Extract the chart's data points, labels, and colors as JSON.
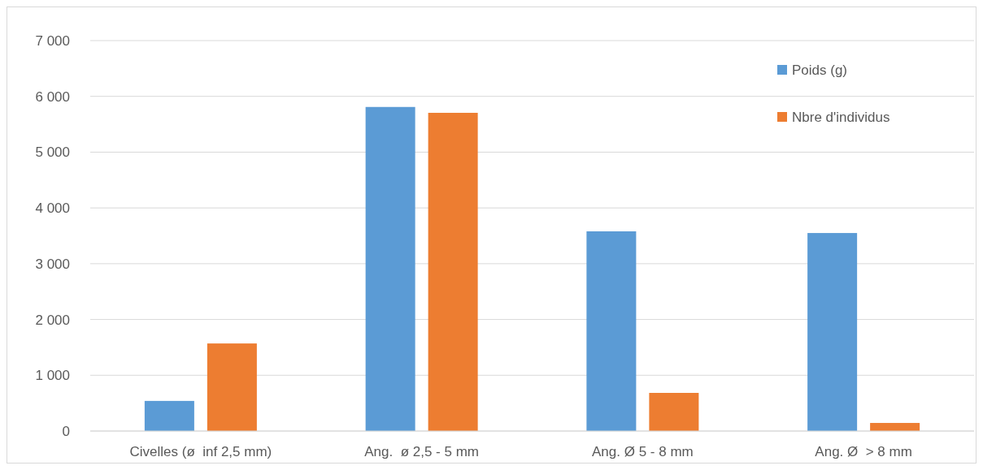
{
  "chart_data": {
    "type": "bar",
    "categories": [
      "Civelles (ø  inf 2,5 mm)",
      "Ang.  ø 2,5 - 5 mm",
      "Ang. Ø 5 - 8 mm",
      "Ang. Ø  > 8 mm"
    ],
    "series": [
      {
        "name": "Poids (g)",
        "color": "#5b9bd5",
        "values": [
          540,
          5810,
          3580,
          3550
        ]
      },
      {
        "name": "Nbre d'individus",
        "color": "#ed7d31",
        "values": [
          1570,
          5705,
          684,
          145
        ]
      }
    ],
    "ylim": [
      0,
      7000
    ],
    "yticks": [
      {
        "value": 0,
        "label": "0"
      },
      {
        "value": 1000,
        "label": "1 000"
      },
      {
        "value": 2000,
        "label": "2 000"
      },
      {
        "value": 3000,
        "label": "3 000"
      },
      {
        "value": 4000,
        "label": "4 000"
      },
      {
        "value": 5000,
        "label": "5 000"
      },
      {
        "value": 6000,
        "label": "6 000"
      },
      {
        "value": 7000,
        "label": "7 000"
      }
    ],
    "grid": "y",
    "legend": "top right"
  }
}
